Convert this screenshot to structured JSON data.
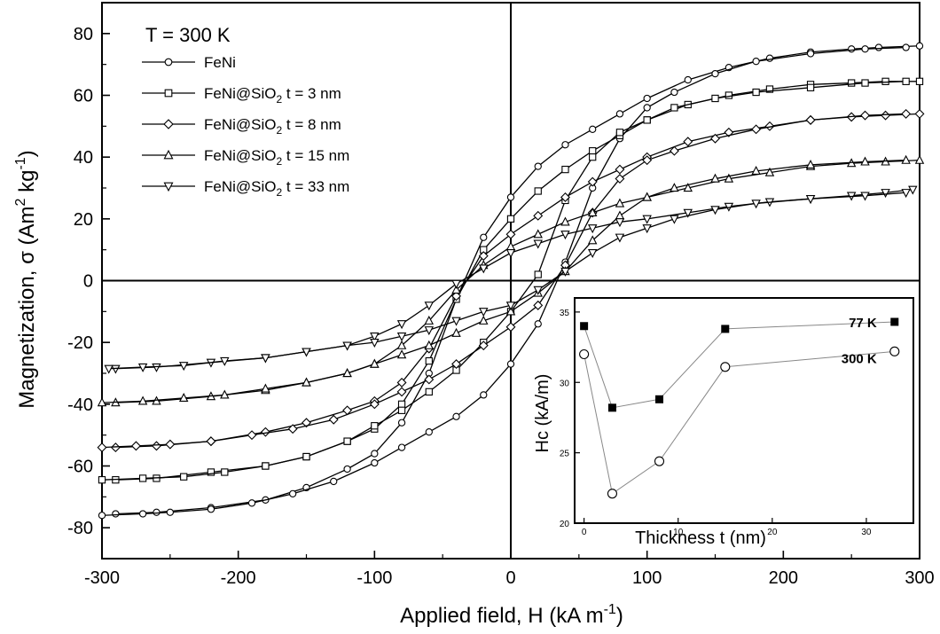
{
  "chart_data": [
    {
      "type": "line",
      "xlabel": "Applied field, H (kA m",
      "xlabel_sup": "-1",
      "xlabel_end": ")",
      "ylabel": "Magnetization, σ (Am",
      "ylabel_sup1": "2",
      "ylabel_mid": " kg",
      "ylabel_sup2": "-1",
      "ylabel_end": ")",
      "xlim": [
        -300,
        300
      ],
      "ylim": [
        -90,
        90
      ],
      "xticks": [
        -300,
        -200,
        -100,
        0,
        100,
        200,
        300
      ],
      "yticks": [
        -80,
        -60,
        -40,
        -20,
        0,
        20,
        40,
        60,
        80
      ],
      "grid": false,
      "annotation": "T = 300 K",
      "legend_position": "top-left",
      "series": [
        {
          "name": "FeNi",
          "sub": "",
          "suffix": "",
          "marker": "circle",
          "branch_upper": [
            [
              -290,
              -75.5
            ],
            [
              -260,
              -75
            ],
            [
              -220,
              -73.5
            ],
            [
              -180,
              -71
            ],
            [
              -150,
              -67
            ],
            [
              -120,
              -61
            ],
            [
              -100,
              -56
            ],
            [
              -80,
              -46
            ],
            [
              -60,
              -30
            ],
            [
              -40,
              -6
            ],
            [
              -20,
              14
            ],
            [
              0,
              27
            ],
            [
              20,
              37
            ],
            [
              40,
              44
            ],
            [
              60,
              49
            ],
            [
              80,
              54
            ],
            [
              100,
              59
            ],
            [
              130,
              65
            ],
            [
              160,
              69
            ],
            [
              190,
              72
            ],
            [
              220,
              74
            ],
            [
              250,
              75
            ],
            [
              270,
              75.5
            ],
            [
              300,
              76
            ]
          ],
          "branch_lower": [
            [
              -300,
              -76
            ],
            [
              -270,
              -75.5
            ],
            [
              -250,
              -75
            ],
            [
              -220,
              -74
            ],
            [
              -190,
              -72
            ],
            [
              -160,
              -69
            ],
            [
              -130,
              -65
            ],
            [
              -100,
              -59
            ],
            [
              -80,
              -54
            ],
            [
              -60,
              -49
            ],
            [
              -40,
              -44
            ],
            [
              -20,
              -37
            ],
            [
              0,
              -27
            ],
            [
              20,
              -14
            ],
            [
              40,
              6
            ],
            [
              60,
              30
            ],
            [
              80,
              46
            ],
            [
              100,
              56
            ],
            [
              120,
              61
            ],
            [
              150,
              67
            ],
            [
              180,
              71
            ],
            [
              220,
              73.5
            ],
            [
              260,
              75
            ],
            [
              290,
              75.5
            ]
          ]
        },
        {
          "name": "FeNi@SiO",
          "sub": "2",
          "suffix": "t = 3 nm",
          "marker": "square",
          "branch_upper": [
            [
              -290,
              -64.5
            ],
            [
              -260,
              -64
            ],
            [
              -220,
              -62
            ],
            [
              -180,
              -60
            ],
            [
              -150,
              -57
            ],
            [
              -120,
              -52
            ],
            [
              -100,
              -48
            ],
            [
              -80,
              -40
            ],
            [
              -60,
              -26
            ],
            [
              -40,
              -6
            ],
            [
              -20,
              10
            ],
            [
              0,
              20
            ],
            [
              20,
              29
            ],
            [
              40,
              36
            ],
            [
              60,
              42
            ],
            [
              80,
              47
            ],
            [
              100,
              52
            ],
            [
              130,
              57
            ],
            [
              160,
              60
            ],
            [
              190,
              62
            ],
            [
              220,
              63.5
            ],
            [
              250,
              64
            ],
            [
              275,
              64.5
            ],
            [
              300,
              64.5
            ]
          ],
          "branch_lower": [
            [
              -300,
              -64.5
            ],
            [
              -270,
              -64
            ],
            [
              -240,
              -63.5
            ],
            [
              -210,
              -62
            ],
            [
              -180,
              -60
            ],
            [
              -150,
              -57
            ],
            [
              -120,
              -52
            ],
            [
              -100,
              -47
            ],
            [
              -80,
              -42
            ],
            [
              -60,
              -36
            ],
            [
              -40,
              -29
            ],
            [
              -20,
              -20
            ],
            [
              0,
              -10
            ],
            [
              20,
              2
            ],
            [
              40,
              26
            ],
            [
              60,
              40
            ],
            [
              80,
              48
            ],
            [
              100,
              52
            ],
            [
              120,
              56
            ],
            [
              150,
              59
            ],
            [
              180,
              61
            ],
            [
              220,
              62.5
            ],
            [
              260,
              64
            ],
            [
              290,
              64.5
            ]
          ]
        },
        {
          "name": "FeNi@SiO",
          "sub": "2",
          "suffix": "t = 8 nm",
          "marker": "diamond",
          "branch_upper": [
            [
              -290,
              -54
            ],
            [
              -260,
              -53.5
            ],
            [
              -220,
              -52
            ],
            [
              -180,
              -49
            ],
            [
              -150,
              -46
            ],
            [
              -120,
              -42
            ],
            [
              -100,
              -39
            ],
            [
              -80,
              -33
            ],
            [
              -60,
              -22
            ],
            [
              -40,
              -5
            ],
            [
              -20,
              8
            ],
            [
              0,
              15
            ],
            [
              20,
              21
            ],
            [
              40,
              27
            ],
            [
              60,
              32
            ],
            [
              80,
              36
            ],
            [
              100,
              40
            ],
            [
              130,
              45
            ],
            [
              160,
              48
            ],
            [
              190,
              50
            ],
            [
              220,
              52
            ],
            [
              250,
              53
            ],
            [
              275,
              53.5
            ],
            [
              300,
              54
            ]
          ],
          "branch_lower": [
            [
              -300,
              -54
            ],
            [
              -275,
              -53.5
            ],
            [
              -250,
              -53
            ],
            [
              -220,
              -52
            ],
            [
              -190,
              -50
            ],
            [
              -160,
              -48
            ],
            [
              -130,
              -45
            ],
            [
              -100,
              -40
            ],
            [
              -80,
              -36
            ],
            [
              -60,
              -32
            ],
            [
              -40,
              -27
            ],
            [
              -20,
              -21
            ],
            [
              0,
              -15
            ],
            [
              20,
              -8
            ],
            [
              40,
              5
            ],
            [
              60,
              22
            ],
            [
              80,
              33
            ],
            [
              100,
              39
            ],
            [
              120,
              42
            ],
            [
              150,
              46
            ],
            [
              180,
              49
            ],
            [
              220,
              52
            ],
            [
              260,
              53.5
            ],
            [
              290,
              54
            ]
          ]
        },
        {
          "name": "FeNi@SiO",
          "sub": "2",
          "suffix": "t = 15 nm",
          "marker": "triangle-up",
          "branch_upper": [
            [
              -290,
              -39.5
            ],
            [
              -260,
              -39
            ],
            [
              -220,
              -37.5
            ],
            [
              -180,
              -35.5
            ],
            [
              -150,
              -33
            ],
            [
              -120,
              -30
            ],
            [
              -100,
              -27
            ],
            [
              -80,
              -21
            ],
            [
              -60,
              -13
            ],
            [
              -40,
              -3
            ],
            [
              -20,
              5
            ],
            [
              0,
              11
            ],
            [
              20,
              15
            ],
            [
              40,
              19
            ],
            [
              60,
              22
            ],
            [
              80,
              25
            ],
            [
              100,
              27
            ],
            [
              130,
              30
            ],
            [
              160,
              33
            ],
            [
              190,
              35
            ],
            [
              220,
              37
            ],
            [
              250,
              38
            ],
            [
              275,
              38.5
            ],
            [
              300,
              39
            ]
          ],
          "branch_lower": [
            [
              -300,
              -39.5
            ],
            [
              -270,
              -39
            ],
            [
              -240,
              -38
            ],
            [
              -210,
              -37
            ],
            [
              -180,
              -35
            ],
            [
              -150,
              -33
            ],
            [
              -120,
              -30
            ],
            [
              -100,
              -27
            ],
            [
              -80,
              -24
            ],
            [
              -60,
              -21
            ],
            [
              -40,
              -17
            ],
            [
              -20,
              -13
            ],
            [
              0,
              -10
            ],
            [
              20,
              -4
            ],
            [
              40,
              3
            ],
            [
              60,
              13
            ],
            [
              80,
              21
            ],
            [
              100,
              27
            ],
            [
              120,
              30
            ],
            [
              150,
              33
            ],
            [
              180,
              35.5
            ],
            [
              220,
              37.5
            ],
            [
              260,
              38.5
            ],
            [
              290,
              39
            ]
          ]
        },
        {
          "name": "FeNi@SiO",
          "sub": "2",
          "suffix": "t = 33 nm",
          "marker": "triangle-down",
          "branch_upper": [
            [
              -290,
              -28.5
            ],
            [
              -260,
              -28
            ],
            [
              -220,
              -26.5
            ],
            [
              -180,
              -25
            ],
            [
              -150,
              -23
            ],
            [
              -120,
              -21
            ],
            [
              -100,
              -18
            ],
            [
              -80,
              -14
            ],
            [
              -60,
              -8
            ],
            [
              -40,
              -1
            ],
            [
              -20,
              4
            ],
            [
              0,
              9
            ],
            [
              20,
              12
            ],
            [
              40,
              15
            ],
            [
              60,
              17
            ],
            [
              80,
              19
            ],
            [
              100,
              20
            ],
            [
              130,
              22
            ],
            [
              160,
              24
            ],
            [
              190,
              25.5
            ],
            [
              220,
              26.5
            ],
            [
              250,
              27.5
            ],
            [
              275,
              28.5
            ],
            [
              295,
              29.5
            ]
          ],
          "branch_lower": [
            [
              -295,
              -28.5
            ],
            [
              -270,
              -28
            ],
            [
              -240,
              -27.5
            ],
            [
              -210,
              -26
            ],
            [
              -180,
              -25
            ],
            [
              -150,
              -23
            ],
            [
              -120,
              -21
            ],
            [
              -100,
              -20
            ],
            [
              -80,
              -18
            ],
            [
              -60,
              -16
            ],
            [
              -40,
              -13
            ],
            [
              -20,
              -10
            ],
            [
              0,
              -8
            ],
            [
              20,
              -3
            ],
            [
              40,
              3
            ],
            [
              60,
              9
            ],
            [
              80,
              14
            ],
            [
              100,
              17
            ],
            [
              120,
              20
            ],
            [
              150,
              23
            ],
            [
              180,
              25
            ],
            [
              220,
              26.5
            ],
            [
              260,
              27.5
            ],
            [
              290,
              28.5
            ]
          ]
        }
      ]
    },
    {
      "type": "line",
      "xlabel": "Thickness t (nm)",
      "ylabel": "Hc (kA/m)",
      "xlim": [
        -1,
        35
      ],
      "ylim": [
        20,
        36
      ],
      "xticks": [
        0,
        10,
        20,
        30
      ],
      "yticks": [
        20,
        25,
        30,
        35
      ],
      "grid": false,
      "series": [
        {
          "name": "77 K",
          "marker": "filled-square",
          "x": [
            0,
            3,
            8,
            15,
            33
          ],
          "values": [
            34.0,
            28.2,
            28.8,
            33.8,
            34.3
          ]
        },
        {
          "name": "300 K",
          "marker": "open-circle",
          "x": [
            0,
            3,
            8,
            15,
            33
          ],
          "values": [
            32.0,
            22.1,
            24.4,
            31.1,
            32.2
          ]
        }
      ]
    }
  ]
}
